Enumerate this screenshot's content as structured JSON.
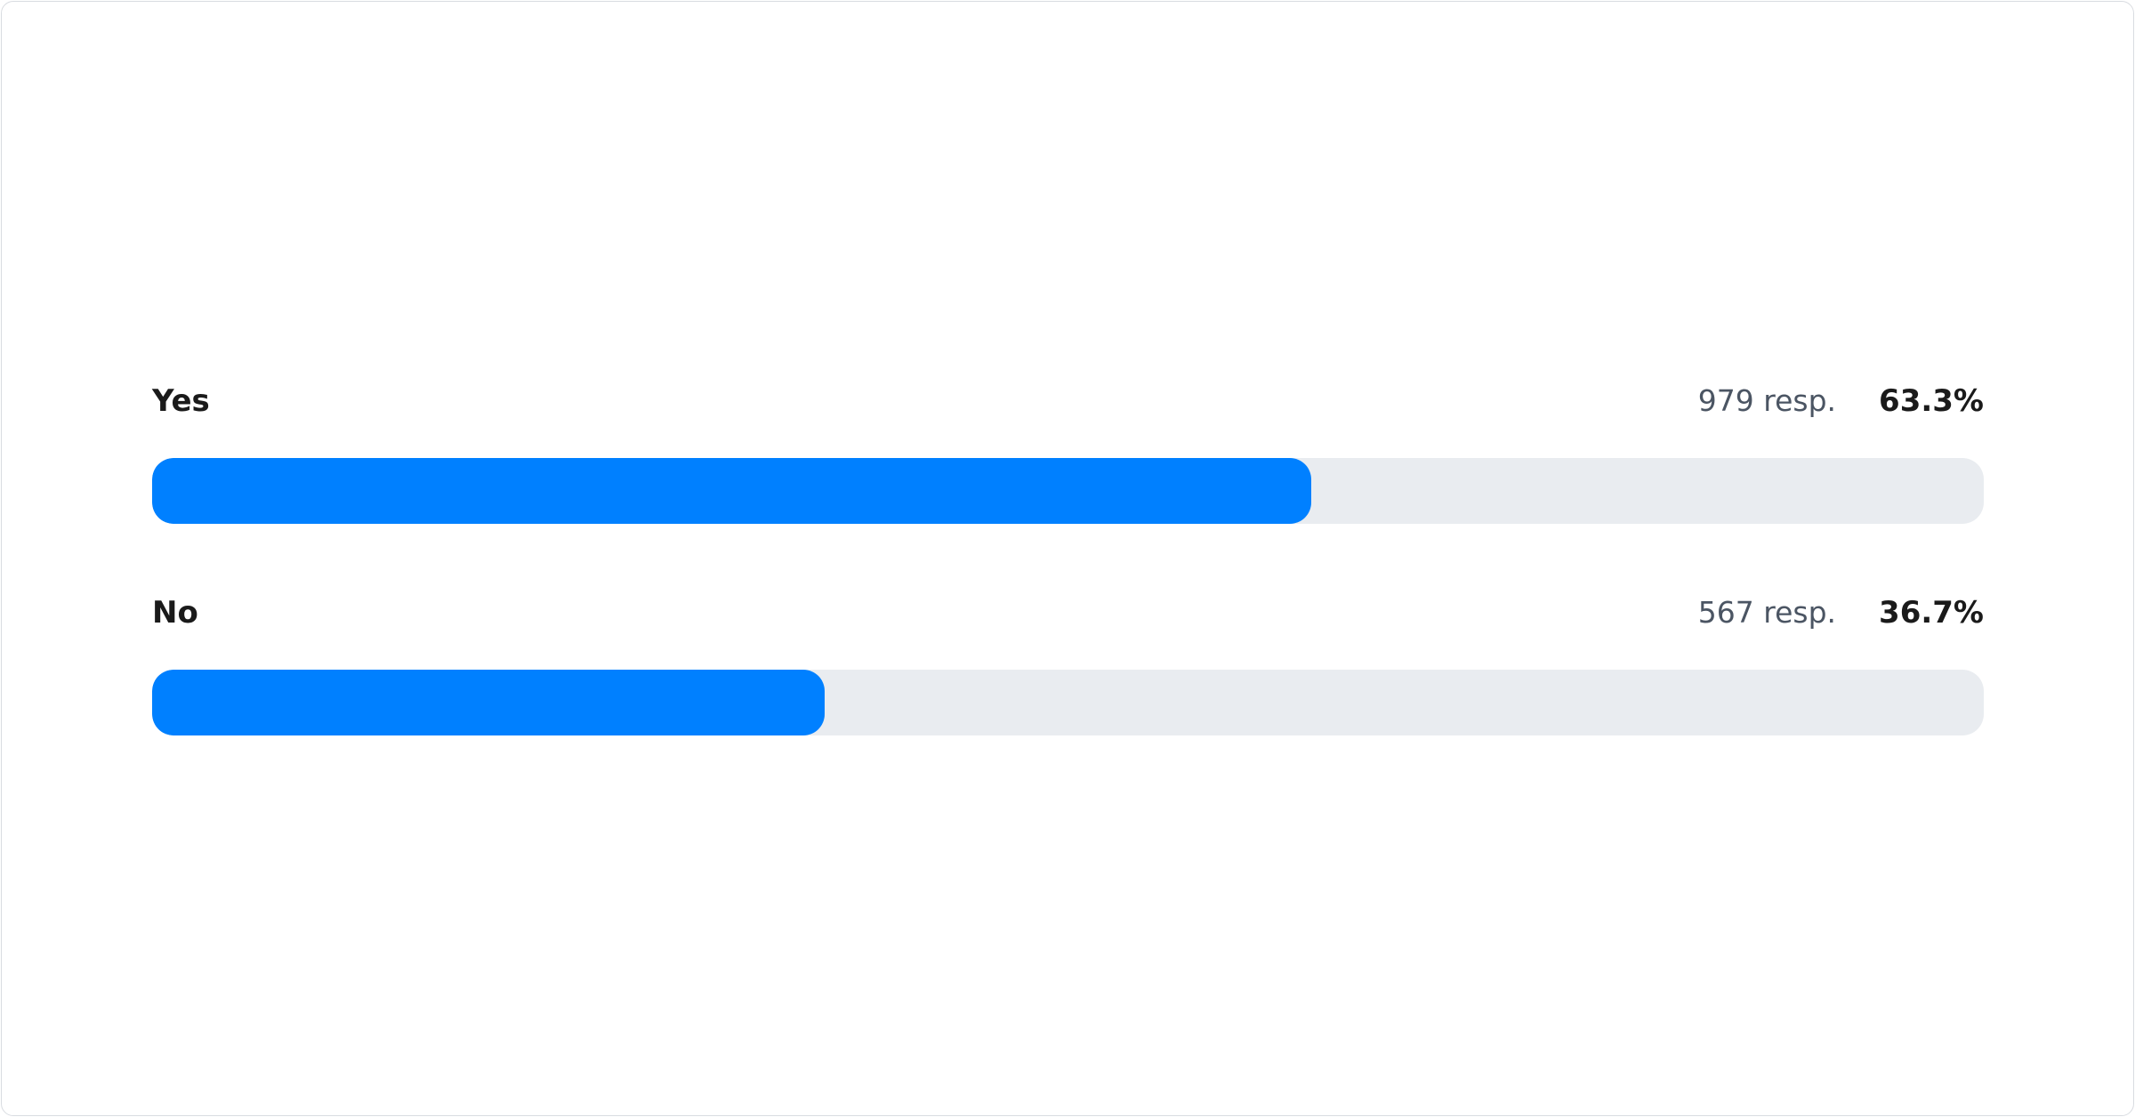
{
  "chart_data": {
    "type": "bar",
    "orientation": "horizontal",
    "categories": [
      "Yes",
      "No"
    ],
    "responses": [
      "979 resp.",
      "567 resp."
    ],
    "percent_labels": [
      "63.3%",
      "36.7%"
    ],
    "values": [
      63.3,
      36.7
    ],
    "xlim": [
      0,
      100
    ],
    "grid": false,
    "colors": {
      "fill": "#0080FF",
      "track": "#E9ECF0"
    }
  }
}
